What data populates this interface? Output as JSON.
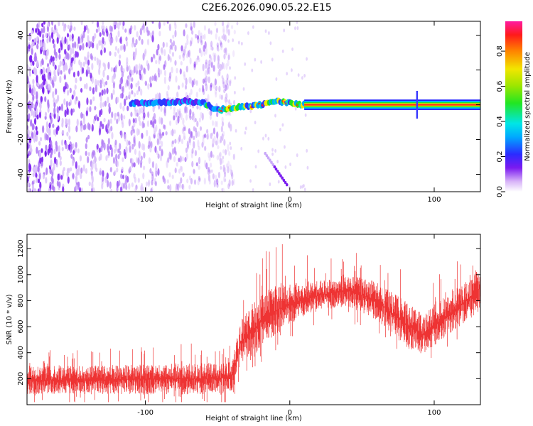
{
  "title": "C2E6.2026.090.05.22.E15",
  "chart_data": [
    {
      "type": "heatmap",
      "name": "spectrogram",
      "xlabel": "Height of straight line (km)",
      "ylabel": "Frequency (Hz)",
      "xlim": [
        -182,
        132
      ],
      "ylim": [
        -50,
        48
      ],
      "x_ticks": [
        -100,
        0,
        100
      ],
      "x_tick_labels": [
        "-100",
        "0",
        "100"
      ],
      "y_ticks": [
        -40,
        -20,
        0,
        20,
        40
      ],
      "y_tick_labels": [
        "-40",
        "-20",
        "0",
        "20",
        "40"
      ],
      "colorbar": {
        "label": "Normalized spectral amplitude",
        "range": [
          0,
          0.97
        ],
        "ticks": [
          0,
          0.2,
          0.4,
          0.6,
          0.8
        ],
        "tick_labels": [
          "0.0",
          "0.2",
          "0.4",
          "0.6",
          "0.8"
        ],
        "colormap": "rainbow (white-violet-blue-cyan-green-yellow-red-magenta)"
      },
      "features": {
        "noise_region_x": [
          -182,
          -50
        ],
        "signal_trace": [
          [
            -100,
            1
          ],
          [
            -85,
            1.5
          ],
          [
            -70,
            2
          ],
          [
            -60,
            1
          ],
          [
            -50,
            -3
          ],
          [
            -40,
            -2
          ],
          [
            -30,
            -1
          ],
          [
            -20,
            0
          ],
          [
            -10,
            2
          ],
          [
            0,
            1
          ],
          [
            10,
            0
          ],
          [
            132,
            0
          ]
        ],
        "constant_tone_x": [
          10,
          132
        ],
        "constant_tone_freq": 0,
        "spike_x": 88,
        "diagonal_streak": [
          [
            -17,
            -28
          ],
          [
            -2,
            -46
          ]
        ]
      }
    },
    {
      "type": "line",
      "name": "snr",
      "xlabel": "Height of straight line (km)",
      "ylabel": "SNR (10 * v/v)",
      "xlim": [
        -182,
        132
      ],
      "ylim": [
        0,
        1310
      ],
      "x_ticks": [
        -100,
        0,
        100
      ],
      "x_tick_labels": [
        "-100",
        "0",
        "100"
      ],
      "y_ticks": [
        200,
        400,
        600,
        800,
        1000,
        1200
      ],
      "y_tick_labels": [
        "200",
        "400",
        "600",
        "800",
        "1000",
        "1200"
      ],
      "color": "#ee3333",
      "envelope": {
        "x": [
          -182,
          -150,
          -100,
          -60,
          -40,
          -34,
          -25,
          -15,
          0,
          20,
          40,
          60,
          80,
          92,
          105,
          120,
          132
        ],
        "low": [
          80,
          80,
          80,
          80,
          90,
          320,
          380,
          480,
          620,
          720,
          760,
          650,
          450,
          380,
          500,
          620,
          720
        ],
        "high": [
          300,
          300,
          310,
          320,
          330,
          650,
          780,
          900,
          940,
          960,
          1000,
          950,
          800,
          700,
          820,
          930,
          1080
        ],
        "peaks": [
          470,
          420,
          450,
          480,
          480,
          960,
          1080,
          1200,
          1300,
          1260,
          1220,
          1180,
          1060,
          960,
          1020,
          1140,
          1180
        ]
      }
    }
  ]
}
